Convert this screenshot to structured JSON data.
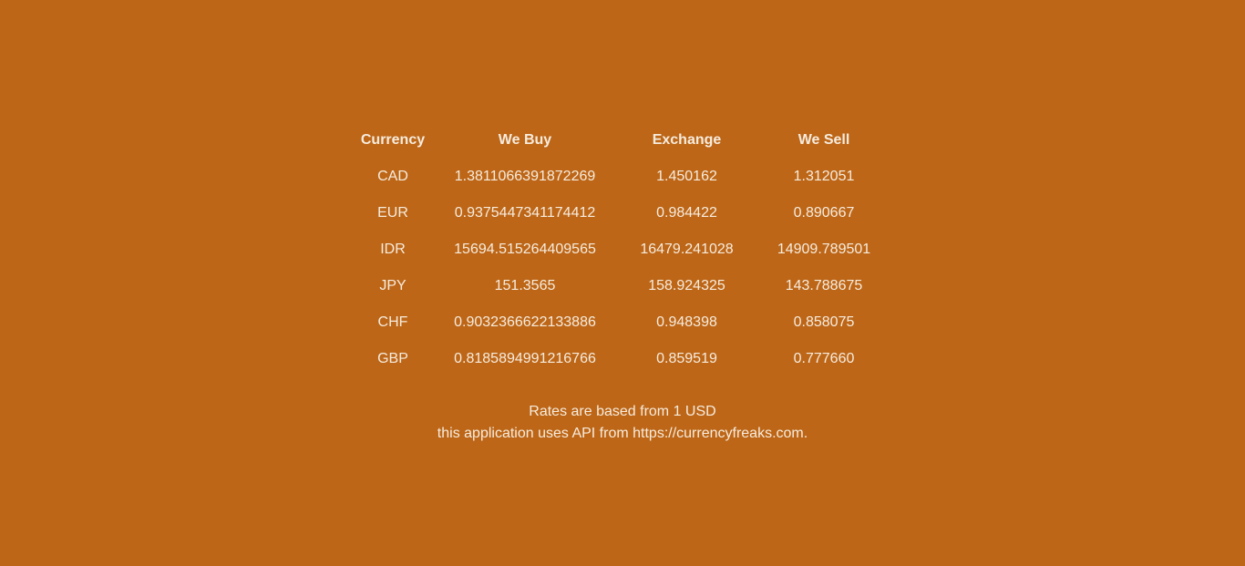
{
  "table": {
    "headers": {
      "currency": "Currency",
      "buy": "We Buy",
      "exchange": "Exchange",
      "sell": "We Sell"
    },
    "rows": [
      {
        "currency": "CAD",
        "buy": "1.3811066391872269",
        "exchange": "1.450162",
        "sell": "1.312051"
      },
      {
        "currency": "EUR",
        "buy": "0.9375447341174412",
        "exchange": "0.984422",
        "sell": "0.890667"
      },
      {
        "currency": "IDR",
        "buy": "15694.515264409565",
        "exchange": "16479.241028",
        "sell": "14909.789501"
      },
      {
        "currency": "JPY",
        "buy": "151.3565",
        "exchange": "158.924325",
        "sell": "143.788675"
      },
      {
        "currency": "CHF",
        "buy": "0.9032366622133886",
        "exchange": "0.948398",
        "sell": "0.858075"
      },
      {
        "currency": "GBP",
        "buy": "0.8185894991216766",
        "exchange": "0.859519",
        "sell": "0.777660"
      }
    ]
  },
  "footer": {
    "line1": "Rates are based from 1 USD",
    "line2": "this application uses API from https://currencyfreaks.com."
  },
  "colors": {
    "background": "#bd6617",
    "text": "#f6ecde"
  }
}
